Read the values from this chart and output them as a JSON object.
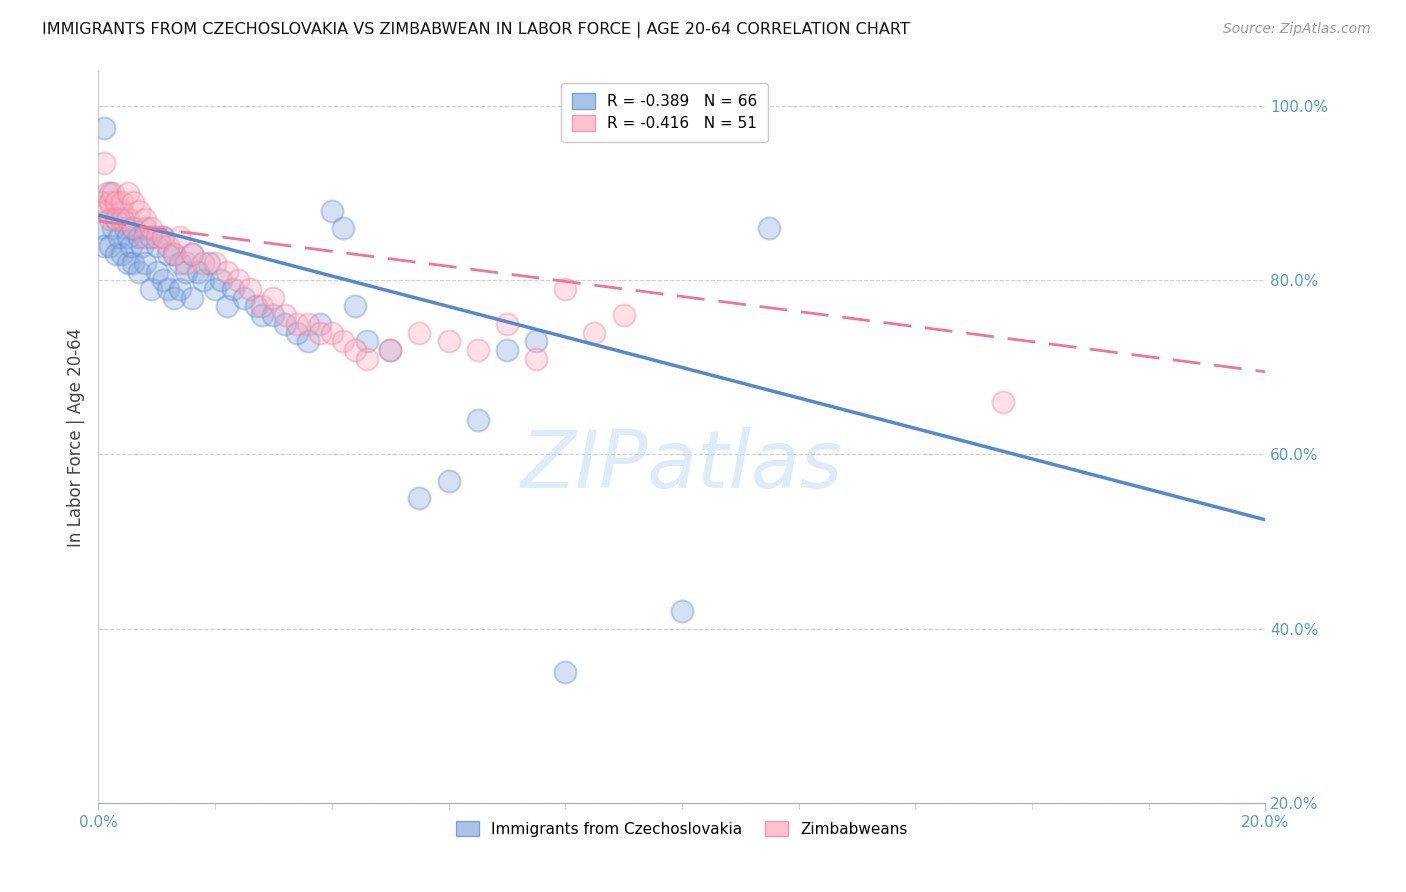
{
  "title": "IMMIGRANTS FROM CZECHOSLOVAKIA VS ZIMBABWEAN IN LABOR FORCE | AGE 20-64 CORRELATION CHART",
  "source": "Source: ZipAtlas.com",
  "ylabel": "In Labor Force | Age 20-64",
  "xlim": [
    0.0,
    0.2
  ],
  "ylim": [
    0.2,
    1.04
  ],
  "xticks_major": [
    0.0,
    0.2
  ],
  "xticks_minor": [
    0.02,
    0.04,
    0.06,
    0.08,
    0.1,
    0.12,
    0.14,
    0.16,
    0.18
  ],
  "xtick_major_labels": [
    "0.0%",
    "20.0%"
  ],
  "yticks": [
    0.2,
    0.4,
    0.6,
    0.8,
    1.0
  ],
  "ytick_labels": [
    "20.0%",
    "40.0%",
    "60.0%",
    "80.0%",
    "100.0%"
  ],
  "legend_r1": "R = -0.389   N = 66",
  "legend_r2": "R = -0.416   N = 51",
  "legend_label1": "Immigrants from Czechoslovakia",
  "legend_label2": "Zimbabweans",
  "blue_scatter_x": [
    0.0005,
    0.001,
    0.001,
    0.0015,
    0.002,
    0.002,
    0.0025,
    0.003,
    0.003,
    0.0035,
    0.004,
    0.004,
    0.0045,
    0.005,
    0.005,
    0.0055,
    0.006,
    0.006,
    0.007,
    0.007,
    0.0075,
    0.008,
    0.008,
    0.009,
    0.009,
    0.01,
    0.01,
    0.011,
    0.011,
    0.012,
    0.012,
    0.013,
    0.013,
    0.014,
    0.014,
    0.015,
    0.016,
    0.016,
    0.017,
    0.018,
    0.019,
    0.02,
    0.021,
    0.022,
    0.023,
    0.025,
    0.027,
    0.028,
    0.03,
    0.032,
    0.034,
    0.036,
    0.038,
    0.04,
    0.042,
    0.044,
    0.046,
    0.05,
    0.055,
    0.06,
    0.065,
    0.07,
    0.075,
    0.08,
    0.1,
    0.115
  ],
  "blue_scatter_y": [
    0.86,
    0.975,
    0.84,
    0.88,
    0.84,
    0.9,
    0.86,
    0.87,
    0.83,
    0.85,
    0.88,
    0.83,
    0.86,
    0.85,
    0.82,
    0.84,
    0.86,
    0.82,
    0.85,
    0.81,
    0.84,
    0.86,
    0.82,
    0.85,
    0.79,
    0.84,
    0.81,
    0.85,
    0.8,
    0.83,
    0.79,
    0.83,
    0.78,
    0.82,
    0.79,
    0.81,
    0.83,
    0.78,
    0.81,
    0.8,
    0.82,
    0.79,
    0.8,
    0.77,
    0.79,
    0.78,
    0.77,
    0.76,
    0.76,
    0.75,
    0.74,
    0.73,
    0.75,
    0.88,
    0.86,
    0.77,
    0.73,
    0.72,
    0.55,
    0.57,
    0.64,
    0.72,
    0.73,
    0.35,
    0.42,
    0.86
  ],
  "pink_scatter_x": [
    0.0005,
    0.001,
    0.001,
    0.0015,
    0.002,
    0.002,
    0.0025,
    0.003,
    0.003,
    0.004,
    0.004,
    0.005,
    0.005,
    0.006,
    0.006,
    0.007,
    0.008,
    0.008,
    0.009,
    0.01,
    0.011,
    0.012,
    0.013,
    0.014,
    0.015,
    0.016,
    0.018,
    0.02,
    0.022,
    0.024,
    0.026,
    0.028,
    0.03,
    0.032,
    0.034,
    0.036,
    0.038,
    0.04,
    0.042,
    0.044,
    0.046,
    0.05,
    0.055,
    0.06,
    0.065,
    0.07,
    0.075,
    0.08,
    0.085,
    0.09,
    0.155
  ],
  "pink_scatter_y": [
    0.89,
    0.935,
    0.88,
    0.9,
    0.89,
    0.87,
    0.9,
    0.89,
    0.87,
    0.89,
    0.87,
    0.9,
    0.87,
    0.89,
    0.86,
    0.88,
    0.87,
    0.85,
    0.86,
    0.85,
    0.85,
    0.84,
    0.83,
    0.85,
    0.82,
    0.83,
    0.82,
    0.82,
    0.81,
    0.8,
    0.79,
    0.77,
    0.78,
    0.76,
    0.75,
    0.75,
    0.74,
    0.74,
    0.73,
    0.72,
    0.71,
    0.72,
    0.74,
    0.73,
    0.72,
    0.75,
    0.71,
    0.79,
    0.74,
    0.76,
    0.66
  ],
  "blue_line_x0": 0.0,
  "blue_line_x1": 0.2,
  "blue_line_y0": 0.875,
  "blue_line_y1": 0.525,
  "pink_line_x0": 0.0,
  "pink_line_x1": 0.2,
  "pink_line_y0": 0.868,
  "pink_line_y1": 0.695,
  "blue_color": "#5588cc",
  "pink_color": "#ee7799",
  "blue_fill": "#88aadd",
  "pink_fill": "#ffaabb",
  "background_color": "#ffffff",
  "grid_color": "#cccccc",
  "axis_label_color": "#5599dd",
  "watermark": "ZIPatlas",
  "watermark_color": "#aaccee",
  "title_color": "#111111",
  "source_color": "#999999",
  "ylabel_color": "#444444"
}
